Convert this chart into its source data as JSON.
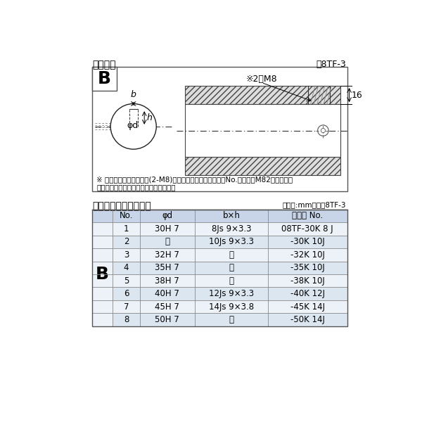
{
  "title_diagram": "軸穴形状",
  "figure_label": "図8TF-3",
  "table_title": "軸穴形状コード一覧表",
  "table_unit": "（単位:mm）　表8TF-3",
  "note_line1": "※ セットボルト用タップ(2-M8)が必要な場合は右記コードNo.の末尾にM82を付ける。",
  "note_line2": "（セットボルトは付属されています。）",
  "dim_label": "※2－M8",
  "dim_16": "16",
  "label_b_top": "b",
  "label_h": "h",
  "label_phid": "φd",
  "B_label": "B",
  "col_headers": [
    "No.",
    "φd",
    "b×h",
    "コード No."
  ],
  "rows": [
    [
      "1",
      "30H 7",
      "8Js 9×3.3",
      "08TF-30K 8 J"
    ],
    [
      "2",
      "〃",
      "10Js 9×3.3",
      "-30K 10J"
    ],
    [
      "3",
      "32H 7",
      "〃",
      "-32K 10J"
    ],
    [
      "4",
      "35H 7",
      "〃",
      "-35K 10J"
    ],
    [
      "5",
      "38H 7",
      "〃",
      "-38K 10J"
    ],
    [
      "6",
      "40H 7",
      "12Js 9×3.3",
      "-40K 12J"
    ],
    [
      "7",
      "45H 7",
      "14Js 9×3.8",
      "-45K 14J"
    ],
    [
      "8",
      "50H 7",
      "〃",
      "-50K 14J"
    ]
  ],
  "bg_color": "#ffffff",
  "table_header_bg": "#c8d4e8",
  "table_row_alt_bg": "#dce6f0",
  "table_row_bg": "#edf2f8",
  "hatch_color": "#888888"
}
